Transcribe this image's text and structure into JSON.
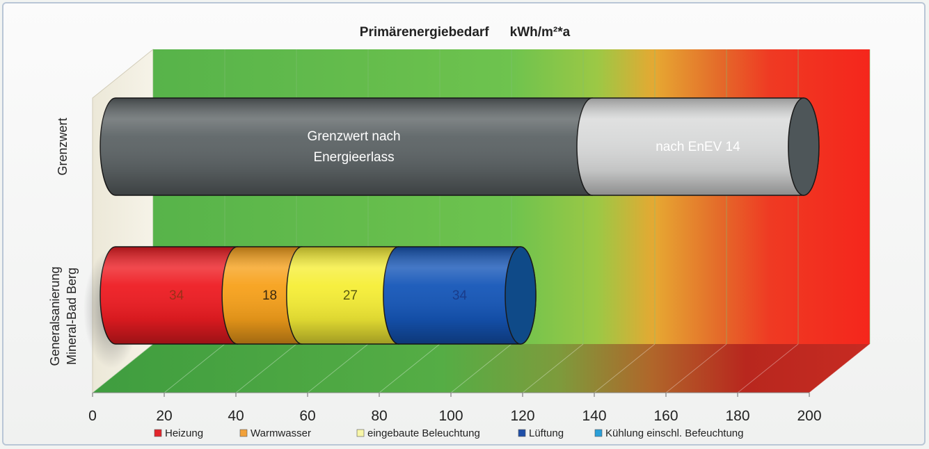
{
  "chart_data": {
    "type": "bar",
    "title": "Primärenergiebedarf",
    "unit": "kWh/m²*a",
    "xlim": [
      0,
      200
    ],
    "ticks": [
      0,
      20,
      40,
      60,
      80,
      100,
      120,
      140,
      160,
      180,
      200
    ],
    "grid": true,
    "legend_position": "bottom",
    "categories": [
      {
        "label": "Grenzwert"
      },
      {
        "label_lines": [
          "Generalsanierung",
          "Mineral-Bad Berg"
        ]
      }
    ],
    "bars": [
      {
        "category": "Grenzwert",
        "segments": [
          {
            "label_lines": [
              "Grenzwert nach",
              "Energieerlass"
            ],
            "value": 133,
            "color": "#5d6466",
            "text_color": "#ffffff"
          },
          {
            "label_lines": [
              "nach EnEV 14"
            ],
            "value": 59,
            "color": "#d8d9d9",
            "text_color": "#ffffff"
          }
        ]
      },
      {
        "category": "Generalsanierung Mineral-Bad Berg",
        "segments": [
          {
            "series": "Heizung",
            "value": 34,
            "label": "34",
            "color": "#ee1c22",
            "text_color": "#9a3018"
          },
          {
            "series": "Warmwasser",
            "value": 18,
            "label": "18",
            "color": "#f7a11b",
            "text_color": "#3a2a10"
          },
          {
            "series": "eingebaute Beleuchtung",
            "value": 27,
            "label": "27",
            "color": "#f6ee36",
            "text_color": "#5a5a10"
          },
          {
            "series": "Lüftung",
            "value": 34,
            "label": "34",
            "color": "#1556b8",
            "text_color": "#1a3c8a"
          }
        ]
      }
    ],
    "series": [
      {
        "name": "Heizung",
        "color": "#e3252b"
      },
      {
        "name": "Warmwasser",
        "color": "#f2a13a"
      },
      {
        "name": "eingebaute Beleuchtung",
        "color": "#f8f6a8"
      },
      {
        "name": "Lüftung",
        "color": "#1f4fa8"
      },
      {
        "name": "Kühlung einschl. Befeuchtung",
        "color": "#2a9fd8"
      }
    ]
  }
}
